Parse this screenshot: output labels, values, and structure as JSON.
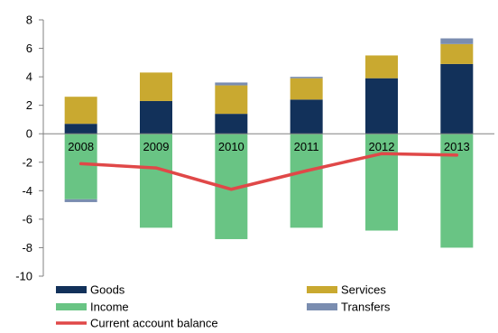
{
  "chart_data": {
    "type": "bar",
    "stacked": true,
    "categories": [
      "2008",
      "2009",
      "2010",
      "2011",
      "2012",
      "2013"
    ],
    "series": [
      {
        "name": "Goods",
        "color": "#12315a",
        "values": [
          0.7,
          2.3,
          1.4,
          2.4,
          3.9,
          4.9
        ]
      },
      {
        "name": "Services",
        "color": "#c9a930",
        "values": [
          1.9,
          2.0,
          2.0,
          1.5,
          1.6,
          1.4
        ]
      },
      {
        "name": "Income",
        "color": "#69c484",
        "values": [
          -4.6,
          -6.6,
          -7.4,
          -6.6,
          -6.8,
          -8.0
        ]
      },
      {
        "name": "Transfers",
        "color": "#7a8db0",
        "values": [
          -0.2,
          0.0,
          0.2,
          0.1,
          0.0,
          0.4
        ]
      }
    ],
    "line": {
      "name": "Current account balance",
      "color": "#e04848",
      "values": [
        -2.1,
        -2.4,
        -3.9,
        -2.6,
        -1.4,
        -1.5
      ]
    },
    "ylim": [
      -10,
      8
    ],
    "yticks": [
      8,
      6,
      4,
      2,
      0,
      -2,
      -4,
      -6,
      -8,
      -10
    ],
    "title": "",
    "xlabel": "",
    "ylabel": "",
    "grid": false,
    "legend_position": "bottom"
  }
}
